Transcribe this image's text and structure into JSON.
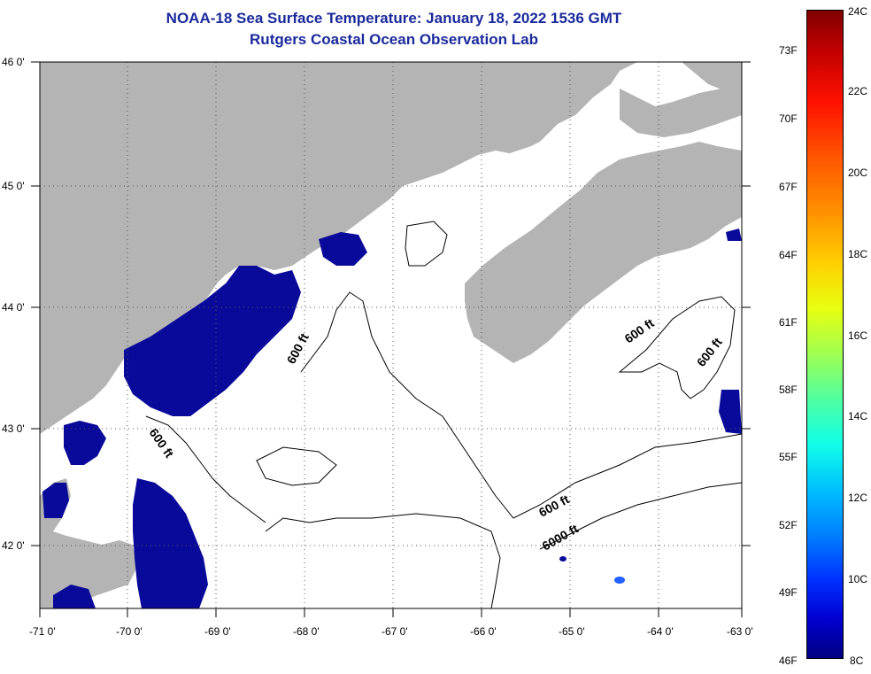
{
  "title": {
    "line1": "NOAA-18 Sea Surface Temperature:  January 18, 2022 1536 GMT",
    "line2": "Rutgers Coastal Ocean Observation Lab"
  },
  "map": {
    "lat_labels": [
      "46 0'",
      "45 0'",
      "44 0'",
      "43 0'",
      "42 0'"
    ],
    "lon_labels": [
      "-71 0'",
      "-70 0'",
      "-69 0'",
      "-68 0'",
      "-67 0'",
      "-66 0'",
      "-65 0'",
      "-64 0'",
      "-63 0'"
    ],
    "contour_labels": [
      "600 ft",
      "600 ft",
      "600 ft",
      "600 ft",
      "600 ft",
      "6000 ft"
    ],
    "land_color": "#b4b4b4",
    "cold_water_color": "#0a0a9a"
  },
  "colorbar": {
    "f_labels": [
      "73F",
      "70F",
      "67F",
      "64F",
      "61F",
      "58F",
      "55F",
      "52F",
      "49F",
      "46F"
    ],
    "c_labels": [
      "24C",
      "22C",
      "20C",
      "18C",
      "16C",
      "14C",
      "12C",
      "10C",
      "8C"
    ]
  }
}
